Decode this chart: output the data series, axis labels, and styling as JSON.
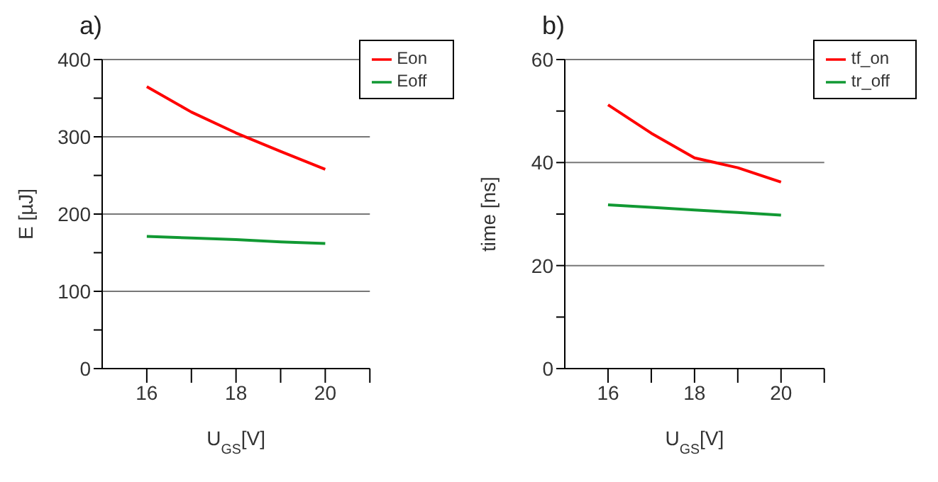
{
  "chart_data": [
    {
      "type": "line",
      "title": "a)",
      "xlabel": "U$_{GS}$[V]",
      "ylabel": "E [µJ]",
      "x": [
        16,
        17,
        18,
        19,
        20
      ],
      "series": [
        {
          "name": "Eon",
          "color": "#ff0000",
          "values": [
            365,
            332,
            305,
            281,
            258
          ]
        },
        {
          "name": "Eoff",
          "color": "#119933",
          "values": [
            171,
            169,
            167,
            164,
            162
          ]
        }
      ],
      "xlim": [
        15,
        21
      ],
      "xticks": [
        16,
        {
          "value": 17,
          "label": null
        },
        18,
        {
          "value": 19,
          "label": null
        },
        20,
        {
          "value": 21,
          "label": null
        }
      ],
      "ylim": [
        0,
        400
      ],
      "yticks": [
        0,
        {
          "value": 50,
          "label": null
        },
        100,
        {
          "value": 150,
          "label": null
        },
        200,
        {
          "value": 250,
          "label": null
        },
        300,
        {
          "value": 350,
          "label": null
        },
        400
      ],
      "grid": "y",
      "legend": "top right",
      "marker": "none",
      "line_style": "solid"
    },
    {
      "type": "line",
      "title": "b)",
      "xlabel": "U$_{GS}$[V]",
      "ylabel": "time [ns]",
      "x": [
        16,
        17,
        18,
        19,
        20
      ],
      "series": [
        {
          "name": "tf_on",
          "color": "#ff0000",
          "values": [
            51.2,
            45.7,
            40.9,
            39,
            36.2
          ]
        },
        {
          "name": "tr_off",
          "color": "#119933",
          "values": [
            31.8,
            31.3,
            30.8,
            30.3,
            29.8
          ]
        }
      ],
      "xlim": [
        15,
        21
      ],
      "xticks": [
        16,
        {
          "value": 17,
          "label": null
        },
        18,
        {
          "value": 19,
          "label": null
        },
        20,
        {
          "value": 21,
          "label": null
        }
      ],
      "ylim": [
        0,
        60
      ],
      "yticks": [
        0,
        {
          "value": 10,
          "label": null
        },
        20,
        {
          "value": 30,
          "label": null
        },
        40,
        {
          "value": 50,
          "label": null
        },
        60
      ],
      "grid": "y",
      "legend": "top right",
      "marker": "none",
      "line_style": "solid"
    }
  ]
}
